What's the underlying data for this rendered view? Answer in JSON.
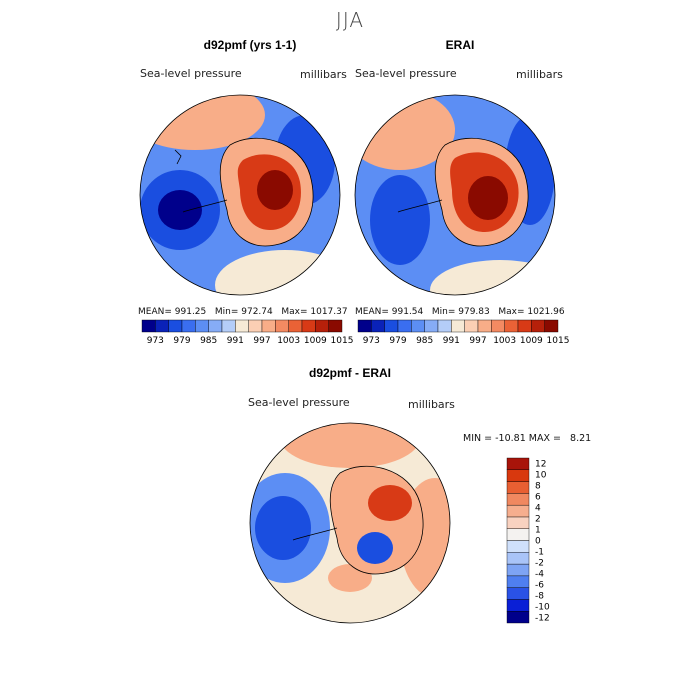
{
  "title": "JJA",
  "panels": [
    {
      "id": "model",
      "title": "d92pmf (yrs 1-1)",
      "variable": "Sea-level pressure",
      "units": "millibars",
      "stats": {
        "mean_label": "MEAN=",
        "mean": "991.25",
        "min_label": "Min=",
        "min": "972.74",
        "max_label": "Max=",
        "max": "1017.37"
      }
    },
    {
      "id": "obs",
      "title": "ERAI",
      "variable": "Sea-level pressure",
      "units": "millibars",
      "stats": {
        "mean_label": "MEAN=",
        "mean": "991.54",
        "min_label": "Min=",
        "min": "979.83",
        "max_label": "Max=",
        "max": "1021.96"
      }
    },
    {
      "id": "diff",
      "title": "d92pmf - ERAI",
      "variable": "Sea-level pressure",
      "units": "millibars",
      "stats": {
        "min_label": "MIN =",
        "min": "-10.81",
        "max_label": "MAX =",
        "max": "8.21"
      }
    }
  ],
  "colorbars": {
    "abs": {
      "colors": [
        "#00008b",
        "#0a22b8",
        "#1a4ee0",
        "#3a6ef0",
        "#5c8ef4",
        "#86acf6",
        "#b4cdf8",
        "#f6ead6",
        "#fbcfb4",
        "#f8ad88",
        "#f38a62",
        "#ea6236",
        "#d83a16",
        "#b6200a",
        "#8a0a00"
      ],
      "tick_labels": [
        "973",
        "979",
        "985",
        "991",
        "997",
        "1003",
        "1009",
        "1015"
      ]
    },
    "diff": {
      "colors": [
        "#00008b",
        "#0a1fd6",
        "#2a52e6",
        "#4f7ff0",
        "#7ea4f4",
        "#a9c4f8",
        "#cfe0fb",
        "#f4f2f0",
        "#f9d2c0",
        "#f6ae8e",
        "#f08860",
        "#e85f32",
        "#d8380e",
        "#a8140a"
      ],
      "tick_labels": [
        "12",
        "10",
        "8",
        "6",
        "4",
        "2",
        "1",
        "0",
        "-1",
        "-2",
        "-4",
        "-6",
        "-8",
        "-10",
        "-12"
      ]
    }
  },
  "map_colors": {
    "low_deep": "#00008b",
    "low": "#1a4ee0",
    "low_mid": "#5c8ef4",
    "neutral": "#f6ead6",
    "high_mid": "#f8ad88",
    "high": "#d83a16",
    "high_deep": "#8a0a00",
    "coast": "#000000"
  },
  "icons": {
    "map": "polar-stereographic-map"
  }
}
